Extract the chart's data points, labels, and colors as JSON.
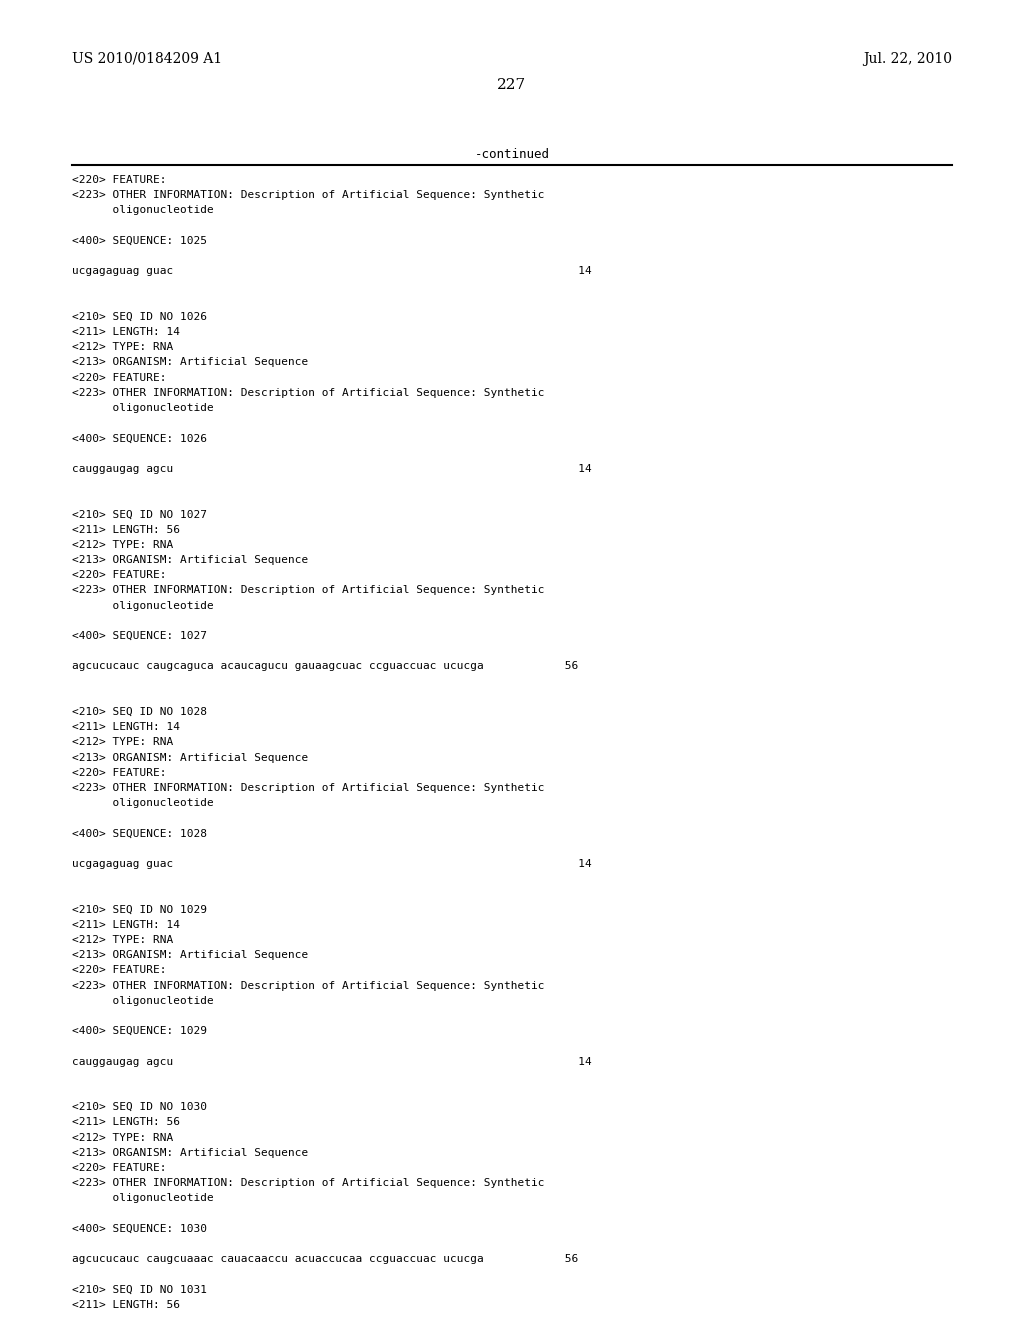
{
  "header_left": "US 2010/0184209 A1",
  "header_right": "Jul. 22, 2010",
  "page_number": "227",
  "continued_text": "-continued",
  "background_color": "#ffffff",
  "text_color": "#000000",
  "figwidth": 10.24,
  "figheight": 13.2,
  "dpi": 100,
  "lines": [
    "<220> FEATURE:",
    "<223> OTHER INFORMATION: Description of Artificial Sequence: Synthetic",
    "      oligonucleotide",
    "",
    "<400> SEQUENCE: 1025",
    "",
    "ucgagaguag guac                                                            14",
    "",
    "",
    "<210> SEQ ID NO 1026",
    "<211> LENGTH: 14",
    "<212> TYPE: RNA",
    "<213> ORGANISM: Artificial Sequence",
    "<220> FEATURE:",
    "<223> OTHER INFORMATION: Description of Artificial Sequence: Synthetic",
    "      oligonucleotide",
    "",
    "<400> SEQUENCE: 1026",
    "",
    "cauggaugag agcu                                                            14",
    "",
    "",
    "<210> SEQ ID NO 1027",
    "<211> LENGTH: 56",
    "<212> TYPE: RNA",
    "<213> ORGANISM: Artificial Sequence",
    "<220> FEATURE:",
    "<223> OTHER INFORMATION: Description of Artificial Sequence: Synthetic",
    "      oligonucleotide",
    "",
    "<400> SEQUENCE: 1027",
    "",
    "agcucucauc caugcaguca acaucagucu gauaagcuac ccguaccuac ucucga            56",
    "",
    "",
    "<210> SEQ ID NO 1028",
    "<211> LENGTH: 14",
    "<212> TYPE: RNA",
    "<213> ORGANISM: Artificial Sequence",
    "<220> FEATURE:",
    "<223> OTHER INFORMATION: Description of Artificial Sequence: Synthetic",
    "      oligonucleotide",
    "",
    "<400> SEQUENCE: 1028",
    "",
    "ucgagaguag guac                                                            14",
    "",
    "",
    "<210> SEQ ID NO 1029",
    "<211> LENGTH: 14",
    "<212> TYPE: RNA",
    "<213> ORGANISM: Artificial Sequence",
    "<220> FEATURE:",
    "<223> OTHER INFORMATION: Description of Artificial Sequence: Synthetic",
    "      oligonucleotide",
    "",
    "<400> SEQUENCE: 1029",
    "",
    "cauggaugag agcu                                                            14",
    "",
    "",
    "<210> SEQ ID NO 1030",
    "<211> LENGTH: 56",
    "<212> TYPE: RNA",
    "<213> ORGANISM: Artificial Sequence",
    "<220> FEATURE:",
    "<223> OTHER INFORMATION: Description of Artificial Sequence: Synthetic",
    "      oligonucleotide",
    "",
    "<400> SEQUENCE: 1030",
    "",
    "agcucucauc caugcuaaac cauacaaccu acuaccucaa ccguaccuac ucucga            56",
    "",
    "<210> SEQ ID NO 1031",
    "<211> LENGTH: 56"
  ]
}
